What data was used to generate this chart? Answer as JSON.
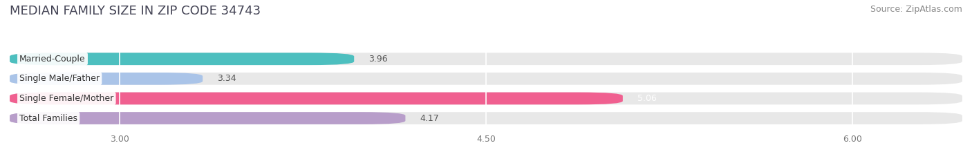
{
  "title": "MEDIAN FAMILY SIZE IN ZIP CODE 34743",
  "source": "Source: ZipAtlas.com",
  "categories": [
    "Married-Couple",
    "Single Male/Father",
    "Single Female/Mother",
    "Total Families"
  ],
  "values": [
    3.96,
    3.34,
    5.06,
    4.17
  ],
  "bar_colors": [
    "#4dbfbf",
    "#aac4e8",
    "#f06090",
    "#b89eca"
  ],
  "bar_labels": [
    "3.96",
    "3.34",
    "5.06",
    "4.17"
  ],
  "bar_label_white": [
    false,
    false,
    true,
    false
  ],
  "xlim_left": 2.55,
  "xlim_right": 6.45,
  "xticks": [
    3.0,
    4.5,
    6.0
  ],
  "xtick_labels": [
    "3.00",
    "4.50",
    "6.00"
  ],
  "page_bg": "#ffffff",
  "bar_track_color": "#e8e8e8",
  "title_fontsize": 13,
  "source_fontsize": 9,
  "label_fontsize": 9,
  "value_fontsize": 9,
  "tick_fontsize": 9,
  "bar_height": 0.62,
  "grid_color": "#ffffff",
  "xstart": 2.55
}
